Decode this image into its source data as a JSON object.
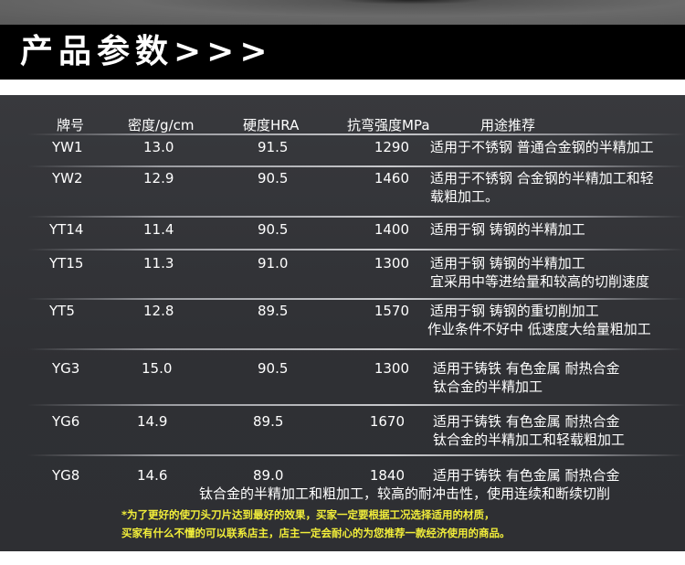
{
  "title": "产品参数>>>",
  "headers": [
    "牌号",
    "密度/g/cm",
    "硬度HRA",
    "抗弯强度MPa",
    "用途推荐"
  ],
  "rows": [
    {
      "grade": "YW1",
      "density": "13.0",
      "hardness": "91.5",
      "strength": "1290",
      "usage": [
        "适用于不锈钢 普通合金钢的半精加工"
      ]
    },
    {
      "grade": "YW2",
      "density": "12.9",
      "hardness": "90.5",
      "strength": "1460",
      "usage": [
        "适用于不锈钢 合金钢的半精加工和轻",
        "载粗加工。"
      ]
    },
    {
      "grade": "YT14",
      "density": "11.4",
      "hardness": "90.5",
      "strength": "1400",
      "usage": [
        "适用于钢 铸钢的半精加工"
      ]
    },
    {
      "grade": "YT15",
      "density": "11.3",
      "hardness": "91.0",
      "strength": "1300",
      "usage": [
        "适用于钢 铸钢的半精加工",
        "宜采用中等进给量和较高的切削速度"
      ]
    },
    {
      "grade": "YT5",
      "density": "12.8",
      "hardness": "89.5",
      "strength": "1570",
      "usage": [
        "适用于钢 铸钢的重切削加工",
        "作业条件不好中 低速度大给量粗加工"
      ]
    },
    {
      "grade": "YG3",
      "density": "15.0",
      "hardness": "90.5",
      "strength": "1300",
      "usage": [
        "适用于铸铁 有色金属 耐热合金",
        "钛合金的半精加工"
      ]
    },
    {
      "grade": "YG6",
      "density": "14.9",
      "hardness": "89.5",
      "strength": "1670",
      "usage": [
        "适用于铸铁 有色金属 耐热合金",
        "钛合金的半精加工和轻载粗加工"
      ]
    },
    {
      "grade": "YG8",
      "density": "14.6",
      "hardness": "89.0",
      "strength": "1840",
      "usage": [
        "适用于铸铁 有色金属 耐热合金",
        "钛合金的半精加工和粗加工，较高的耐冲击性，使用连续和断续切削"
      ]
    }
  ],
  "notes": [
    "*为了更好的使刀头刀片达到最好的效果，买家一定要根据工况选择适用的材质，",
    "买家有什么不懂的可以联系店主，店主一定会耐心的为您推荐一款经济使用的商品。"
  ],
  "colors": {
    "panel": "#313236",
    "band": "#000000",
    "note": "#f2ee3a"
  }
}
